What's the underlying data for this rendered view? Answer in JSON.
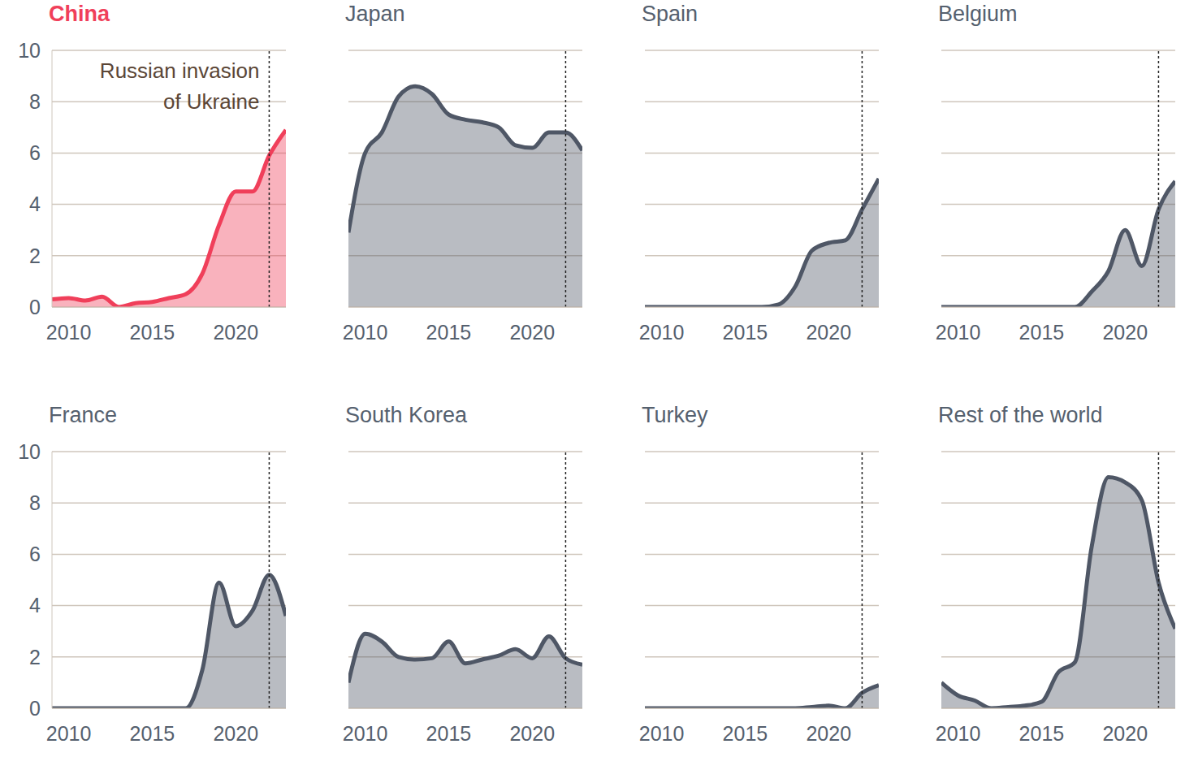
{
  "chart_data": [
    {
      "type": "area",
      "title": "China",
      "color": "#f03f5a",
      "x": [
        2009,
        2010,
        2011,
        2012,
        2013,
        2014,
        2015,
        2016,
        2017,
        2018,
        2019,
        2020,
        2021,
        2022,
        2023
      ],
      "values": [
        0.3,
        0.35,
        0.25,
        0.4,
        0.0,
        0.15,
        0.2,
        0.35,
        0.5,
        1.3,
        3.2,
        4.5,
        4.5,
        5.9,
        6.9
      ],
      "xlim": [
        2009,
        2023
      ],
      "xticks": [
        2010,
        2015,
        2020
      ],
      "ylim": [
        0,
        10
      ],
      "yticks": [
        0,
        2,
        4,
        6,
        8,
        10
      ],
      "grid": true,
      "annotation": {
        "x": 2022,
        "text_lines": [
          "Russian invasion",
          "of Ukraine"
        ]
      }
    },
    {
      "type": "area",
      "title": "Japan",
      "color": "#4f5766",
      "x": [
        2009,
        2010,
        2011,
        2012,
        2013,
        2014,
        2015,
        2016,
        2017,
        2018,
        2019,
        2020,
        2021,
        2022,
        2023
      ],
      "values": [
        2.9,
        6.0,
        6.8,
        8.2,
        8.6,
        8.3,
        7.5,
        7.3,
        7.2,
        7.0,
        6.3,
        6.2,
        6.8,
        6.8,
        6.1
      ],
      "xlim": [
        2009,
        2023
      ],
      "xticks": [
        2010,
        2015,
        2020
      ],
      "ylim": [
        0,
        10
      ],
      "yticks": [
        0,
        2,
        4,
        6,
        8,
        10
      ],
      "grid": true,
      "tick_labels": "x",
      "annotation": {
        "x": 2022
      }
    },
    {
      "type": "area",
      "title": "Spain",
      "color": "#4f5766",
      "x": [
        2009,
        2010,
        2011,
        2012,
        2013,
        2014,
        2015,
        2016,
        2017,
        2018,
        2019,
        2020,
        2021,
        2022,
        2023
      ],
      "values": [
        0,
        0,
        0,
        0,
        0,
        0,
        0,
        0,
        0.1,
        0.8,
        2.2,
        2.5,
        2.6,
        3.8,
        5.0
      ],
      "xlim": [
        2009,
        2023
      ],
      "xticks": [
        2010,
        2015,
        2020
      ],
      "ylim": [
        0,
        10
      ],
      "yticks": [
        0,
        2,
        4,
        6,
        8,
        10
      ],
      "grid": true,
      "tick_labels": "x",
      "annotation": {
        "x": 2022
      }
    },
    {
      "type": "area",
      "title": "Belgium",
      "color": "#4f5766",
      "x": [
        2009,
        2010,
        2011,
        2012,
        2013,
        2014,
        2015,
        2016,
        2017,
        2018,
        2019,
        2020,
        2021,
        2022,
        2023
      ],
      "values": [
        0,
        0,
        0,
        0,
        0,
        0,
        0,
        0,
        0,
        0.6,
        1.4,
        3.0,
        1.6,
        3.8,
        4.9
      ],
      "xlim": [
        2009,
        2023
      ],
      "xticks": [
        2010,
        2015,
        2020
      ],
      "ylim": [
        0,
        10
      ],
      "yticks": [
        0,
        2,
        4,
        6,
        8,
        10
      ],
      "grid": true,
      "tick_labels": "x",
      "annotation": {
        "x": 2022
      }
    },
    {
      "type": "area",
      "title": "France",
      "color": "#4f5766",
      "x": [
        2009,
        2010,
        2011,
        2012,
        2013,
        2014,
        2015,
        2016,
        2017,
        2018,
        2019,
        2020,
        2021,
        2022,
        2023
      ],
      "values": [
        0,
        0,
        0,
        0,
        0,
        0,
        0,
        0,
        0,
        1.5,
        4.9,
        3.2,
        3.8,
        5.2,
        3.6
      ],
      "xlim": [
        2009,
        2023
      ],
      "xticks": [
        2010,
        2015,
        2020
      ],
      "ylim": [
        0,
        10
      ],
      "yticks": [
        0,
        2,
        4,
        6,
        8,
        10
      ],
      "grid": true,
      "annotation": {
        "x": 2022
      }
    },
    {
      "type": "area",
      "title": "South Korea",
      "color": "#4f5766",
      "x": [
        2009,
        2010,
        2011,
        2012,
        2013,
        2014,
        2015,
        2016,
        2017,
        2018,
        2019,
        2020,
        2021,
        2022,
        2023
      ],
      "values": [
        1.0,
        2.9,
        2.6,
        2.0,
        1.9,
        1.95,
        2.6,
        1.75,
        1.9,
        2.05,
        2.3,
        1.95,
        2.8,
        1.95,
        1.7
      ],
      "xlim": [
        2009,
        2023
      ],
      "xticks": [
        2010,
        2015,
        2020
      ],
      "ylim": [
        0,
        10
      ],
      "yticks": [
        0,
        2,
        4,
        6,
        8,
        10
      ],
      "grid": true,
      "tick_labels": "x",
      "annotation": {
        "x": 2022
      }
    },
    {
      "type": "area",
      "title": "Turkey",
      "color": "#4f5766",
      "x": [
        2009,
        2010,
        2011,
        2012,
        2013,
        2014,
        2015,
        2016,
        2017,
        2018,
        2019,
        2020,
        2021,
        2022,
        2023
      ],
      "values": [
        0,
        0,
        0,
        0,
        0,
        0,
        0,
        0,
        0,
        0,
        0.05,
        0.1,
        0.0,
        0.6,
        0.9
      ],
      "xlim": [
        2009,
        2023
      ],
      "xticks": [
        2010,
        2015,
        2020
      ],
      "ylim": [
        0,
        10
      ],
      "yticks": [
        0,
        2,
        4,
        6,
        8,
        10
      ],
      "grid": true,
      "tick_labels": "x",
      "annotation": {
        "x": 2022
      }
    },
    {
      "type": "area",
      "title": "Rest of the world",
      "color": "#4f5766",
      "x": [
        2009,
        2010,
        2011,
        2012,
        2013,
        2014,
        2015,
        2016,
        2017,
        2018,
        2019,
        2020,
        2021,
        2022,
        2023
      ],
      "values": [
        1.0,
        0.5,
        0.3,
        0.0,
        0.05,
        0.1,
        0.25,
        1.4,
        1.8,
        6.3,
        9.0,
        8.8,
        8.1,
        4.9,
        3.1
      ],
      "xlim": [
        2009,
        2023
      ],
      "xticks": [
        2010,
        2015,
        2020
      ],
      "ylim": [
        0,
        10
      ],
      "yticks": [
        0,
        2,
        4,
        6,
        8,
        10
      ],
      "grid": true,
      "tick_labels": "x",
      "annotation": {
        "x": 2022
      }
    }
  ]
}
